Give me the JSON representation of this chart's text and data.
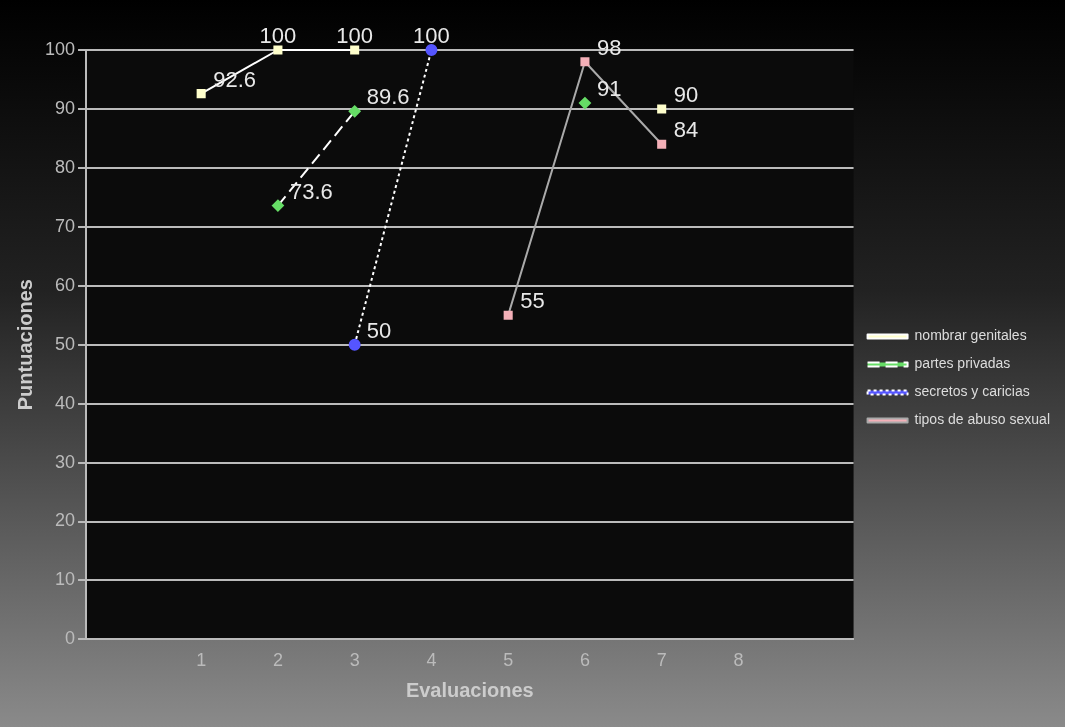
{
  "chart_data": {
    "type": "line",
    "xlabel": "Evaluaciones",
    "ylabel": "Puntuaciones",
    "categories": [
      null,
      "1",
      "2",
      "3",
      "4",
      "5",
      "6",
      "7",
      "8",
      null
    ],
    "series": [
      {
        "name": "nombrar genitales",
        "color": "#ffffcc",
        "marker": "square",
        "line_style": "solid",
        "values": [
          null,
          92.6,
          100,
          100,
          null,
          null,
          null,
          90,
          null,
          null
        ]
      },
      {
        "name": "partes privadas",
        "color": "#66dd66",
        "marker": "diamond",
        "line_style": "dashed",
        "values": [
          null,
          null,
          73.6,
          89.6,
          null,
          null,
          91,
          null,
          null,
          null
        ]
      },
      {
        "name": "secretos y caricias",
        "color": "#5555ff",
        "marker": "circle",
        "line_style": "dotted",
        "values": [
          null,
          null,
          null,
          50,
          100,
          null,
          null,
          null,
          null,
          null
        ]
      },
      {
        "name": "tipos de abuso sexual",
        "color": "#f4b0b8",
        "marker": "square",
        "line_style": "solid",
        "values": [
          null,
          null,
          null,
          null,
          null,
          55,
          98,
          84,
          null,
          null
        ]
      }
    ],
    "ylim": [
      0,
      100
    ],
    "yticks": [
      0,
      10,
      20,
      30,
      40,
      50,
      60,
      70,
      80,
      90,
      100
    ],
    "grid": "y",
    "legend": "right",
    "data_labels": true
  }
}
